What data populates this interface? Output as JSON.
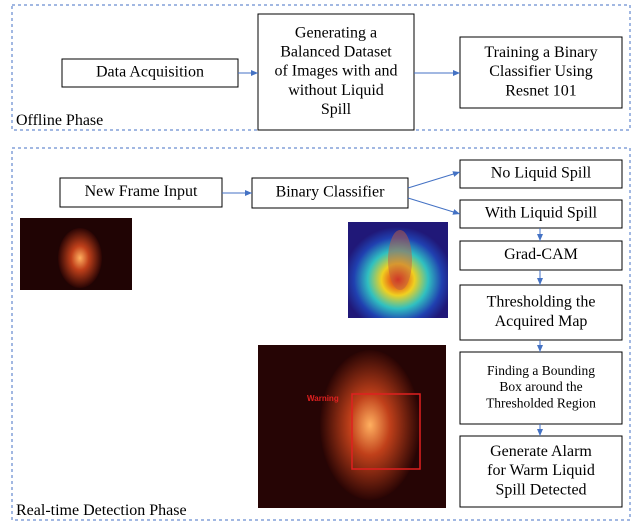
{
  "offline_phase": {
    "label": "Offline Phase",
    "nodes": [
      {
        "lines": [
          "Data Acquisition"
        ]
      },
      {
        "lines": [
          "Generating a",
          "Balanced Dataset",
          "of Images with and",
          "without Liquid",
          "Spill"
        ]
      },
      {
        "lines": [
          "Training a Binary",
          "Classifier Using",
          "Resnet 101"
        ]
      }
    ]
  },
  "realtime_phase": {
    "label": "Real-time Detection Phase",
    "nodes": [
      {
        "lines": [
          "New Frame Input"
        ]
      },
      {
        "lines": [
          "Binary Classifier"
        ]
      },
      {
        "lines": [
          "No Liquid Spill"
        ]
      },
      {
        "lines": [
          "With Liquid Spill"
        ]
      },
      {
        "lines": [
          "Grad-CAM"
        ]
      },
      {
        "lines": [
          "Thresholding the",
          "Acquired Map"
        ]
      },
      {
        "lines": [
          "Finding a Bounding",
          "Box around the",
          "Thresholded Region"
        ]
      },
      {
        "lines": [
          "Generate Alarm",
          "for Warm Liquid",
          "Spill Detected"
        ]
      }
    ],
    "warning_label": "Warning"
  }
}
